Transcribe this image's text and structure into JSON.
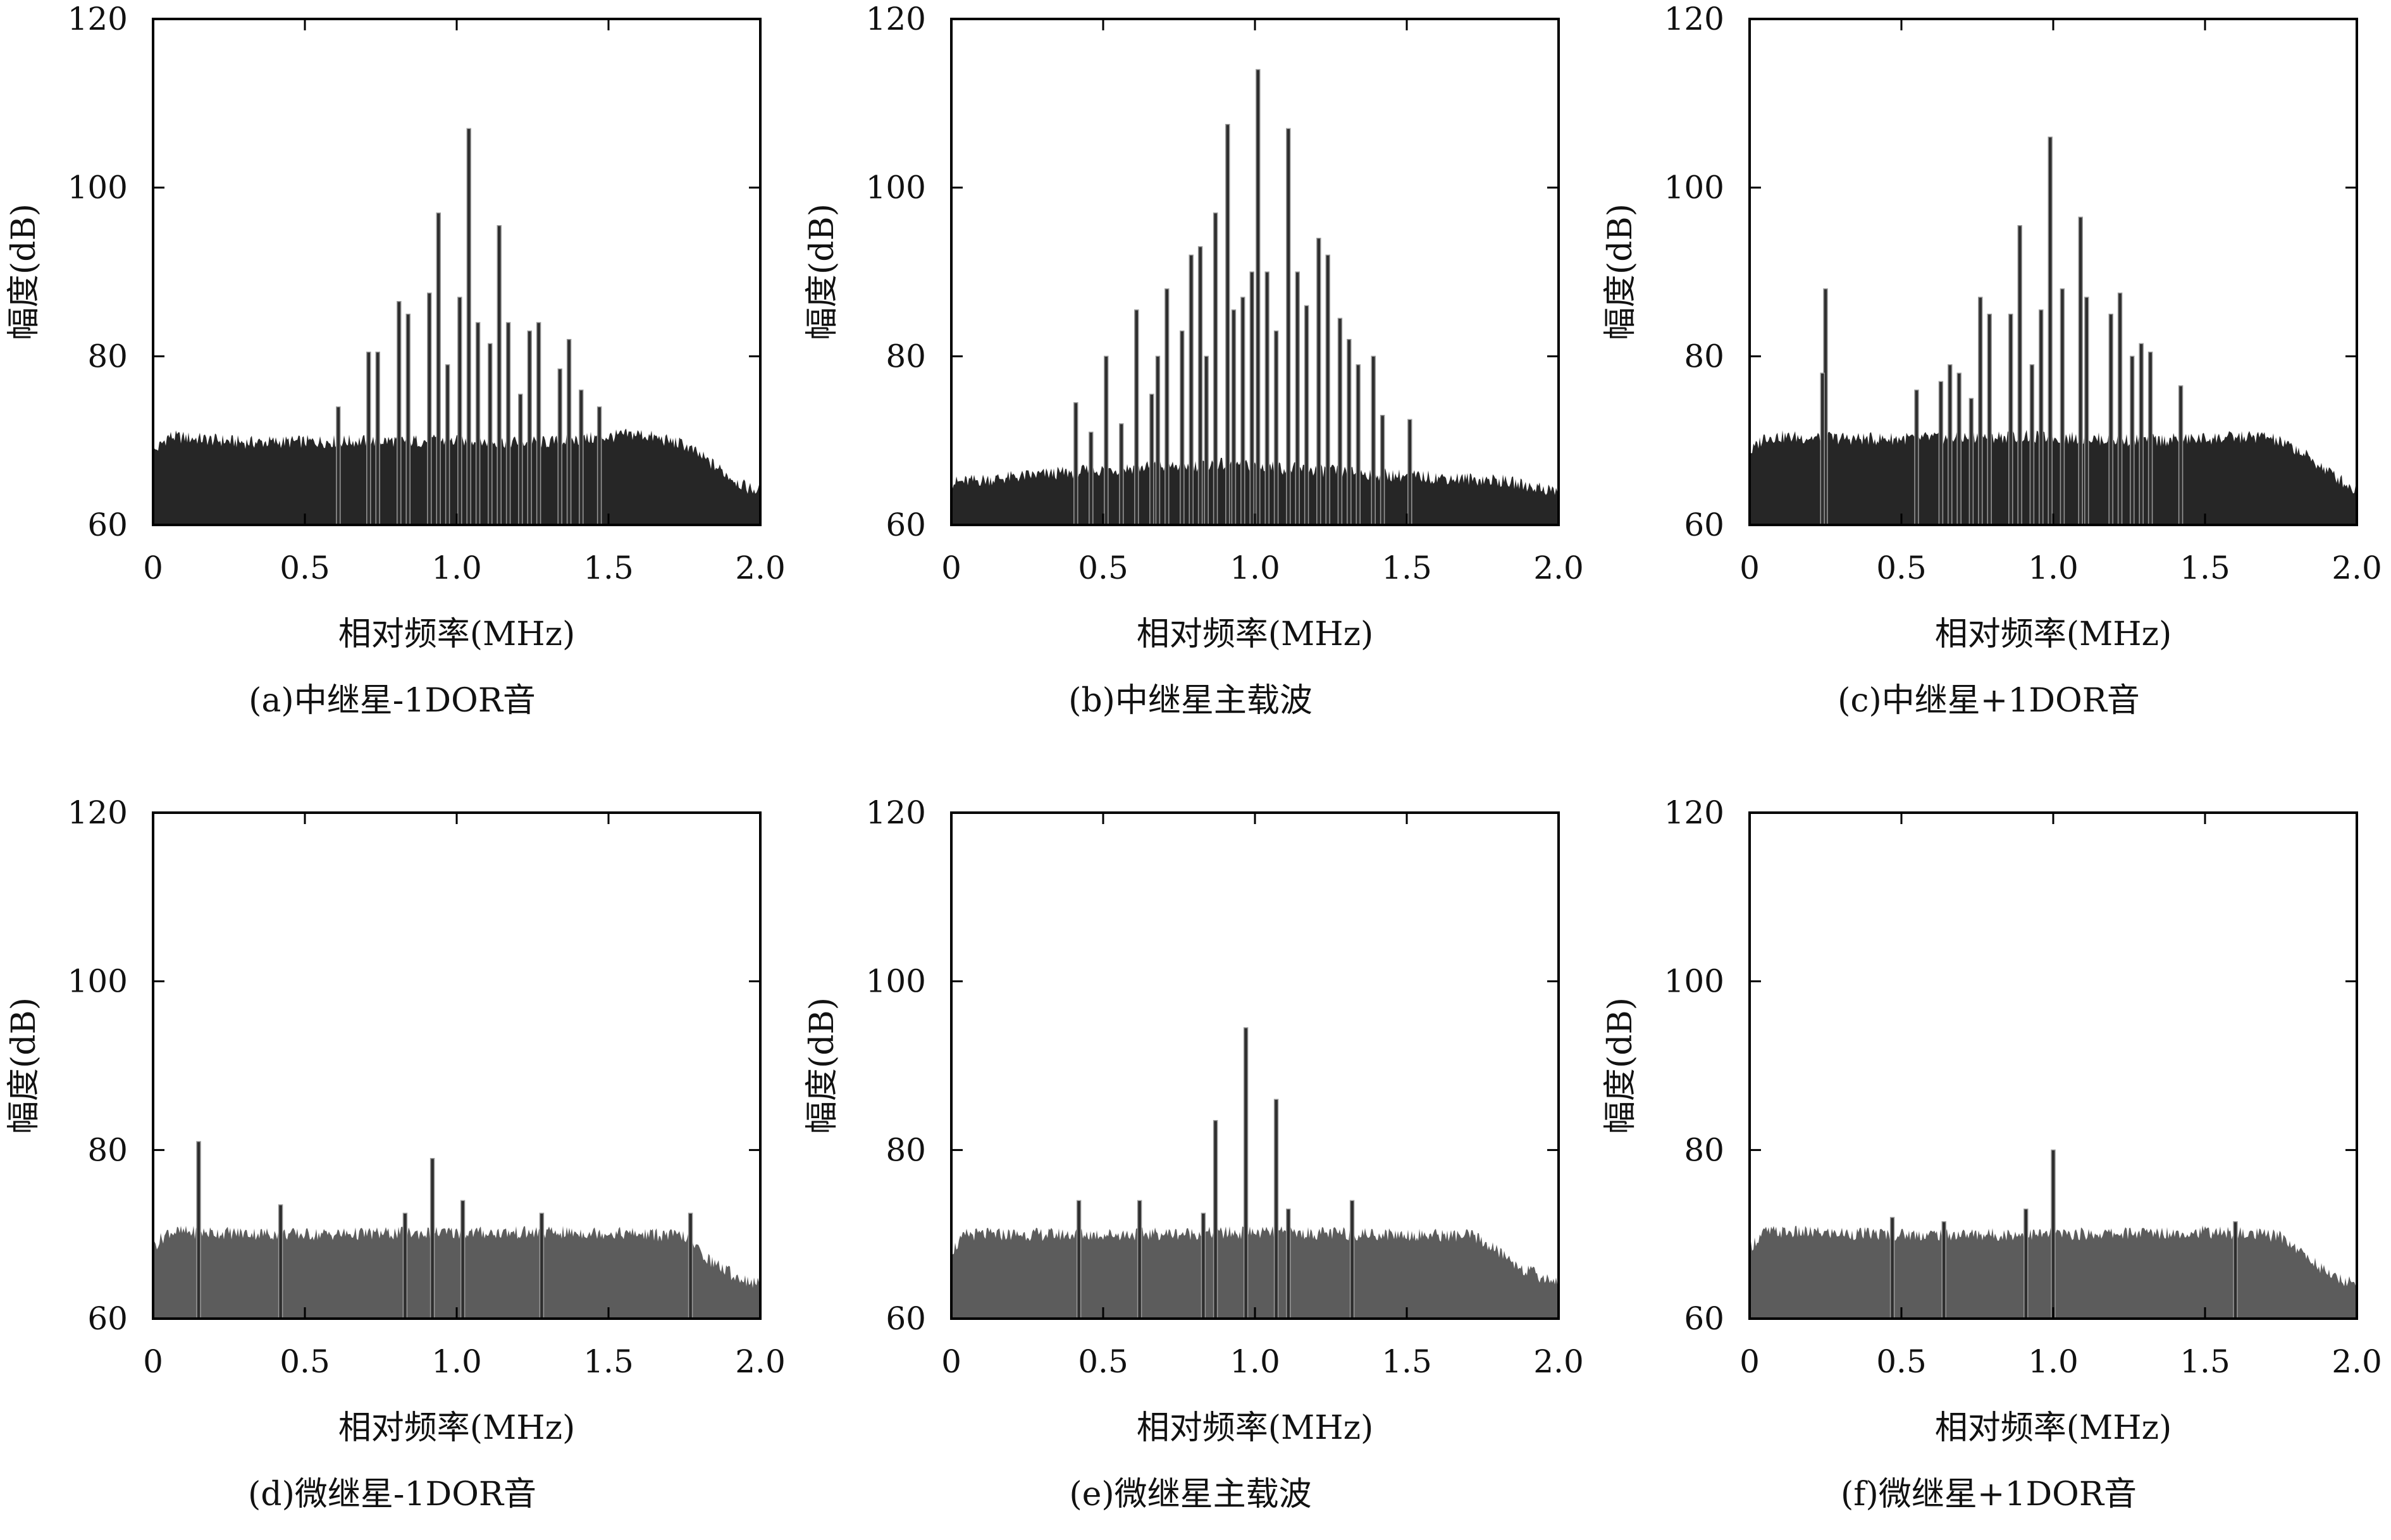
{
  "chart_data": [
    {
      "type": "bar",
      "caption": "(a)中继星-1DOR音",
      "xlabel": "相对频率(MHz)",
      "ylabel": "幅度(dB)",
      "xlim": [
        0,
        2.0
      ],
      "ylim": [
        60,
        120
      ],
      "xticks": [
        "0",
        "0.5",
        "1.0",
        "1.5",
        "2.0"
      ],
      "yticks": [
        "60",
        "80",
        "100",
        "120"
      ],
      "fill_color": "#262626",
      "noise_floor": [
        [
          0,
          68.5
        ],
        [
          0.05,
          70.5
        ],
        [
          0.3,
          69.8
        ],
        [
          0.8,
          70.0
        ],
        [
          1.3,
          69.8
        ],
        [
          1.6,
          70.8
        ],
        [
          1.75,
          69.5
        ],
        [
          1.85,
          67.0
        ],
        [
          1.95,
          64.5
        ],
        [
          2.0,
          64.0
        ]
      ],
      "peaks": [
        {
          "x": 0.61,
          "y": 74
        },
        {
          "x": 0.71,
          "y": 80.5
        },
        {
          "x": 0.74,
          "y": 80.5
        },
        {
          "x": 0.81,
          "y": 86.5
        },
        {
          "x": 0.84,
          "y": 85
        },
        {
          "x": 0.91,
          "y": 87.5
        },
        {
          "x": 0.94,
          "y": 97
        },
        {
          "x": 0.97,
          "y": 79
        },
        {
          "x": 1.01,
          "y": 87
        },
        {
          "x": 1.04,
          "y": 107
        },
        {
          "x": 1.07,
          "y": 84
        },
        {
          "x": 1.11,
          "y": 81.5
        },
        {
          "x": 1.14,
          "y": 95.5
        },
        {
          "x": 1.17,
          "y": 84
        },
        {
          "x": 1.21,
          "y": 75.5
        },
        {
          "x": 1.24,
          "y": 83
        },
        {
          "x": 1.27,
          "y": 84
        },
        {
          "x": 1.34,
          "y": 78.5
        },
        {
          "x": 1.37,
          "y": 82
        },
        {
          "x": 1.41,
          "y": 76
        },
        {
          "x": 1.47,
          "y": 74
        }
      ]
    },
    {
      "type": "bar",
      "caption": "(b)中继星主载波",
      "xlabel": "相对频率(MHz)",
      "ylabel": "幅度(dB)",
      "xlim": [
        0,
        2.0
      ],
      "ylim": [
        60,
        120
      ],
      "xticks": [
        "0",
        "0.5",
        "1.0",
        "1.5",
        "2.0"
      ],
      "yticks": [
        "60",
        "80",
        "100",
        "120"
      ],
      "fill_color": "#262626",
      "noise_floor": [
        [
          0,
          65.0
        ],
        [
          0.3,
          66.0
        ],
        [
          0.6,
          66.8
        ],
        [
          0.9,
          67.2
        ],
        [
          1.2,
          66.5
        ],
        [
          1.5,
          65.8
        ],
        [
          1.8,
          65.3
        ],
        [
          2.0,
          64.0
        ]
      ],
      "peaks": [
        {
          "x": 0.41,
          "y": 74.5
        },
        {
          "x": 0.46,
          "y": 71
        },
        {
          "x": 0.51,
          "y": 80
        },
        {
          "x": 0.56,
          "y": 72
        },
        {
          "x": 0.61,
          "y": 85.5
        },
        {
          "x": 0.66,
          "y": 75.5
        },
        {
          "x": 0.68,
          "y": 80
        },
        {
          "x": 0.71,
          "y": 88
        },
        {
          "x": 0.76,
          "y": 83
        },
        {
          "x": 0.79,
          "y": 92
        },
        {
          "x": 0.82,
          "y": 93
        },
        {
          "x": 0.84,
          "y": 80
        },
        {
          "x": 0.87,
          "y": 97
        },
        {
          "x": 0.91,
          "y": 107.5
        },
        {
          "x": 0.93,
          "y": 85.5
        },
        {
          "x": 0.96,
          "y": 87
        },
        {
          "x": 0.99,
          "y": 90
        },
        {
          "x": 1.01,
          "y": 114
        },
        {
          "x": 1.04,
          "y": 90
        },
        {
          "x": 1.07,
          "y": 83
        },
        {
          "x": 1.11,
          "y": 107
        },
        {
          "x": 1.14,
          "y": 90
        },
        {
          "x": 1.17,
          "y": 86
        },
        {
          "x": 1.21,
          "y": 94
        },
        {
          "x": 1.24,
          "y": 92
        },
        {
          "x": 1.28,
          "y": 84.5
        },
        {
          "x": 1.31,
          "y": 82
        },
        {
          "x": 1.34,
          "y": 79
        },
        {
          "x": 1.39,
          "y": 80
        },
        {
          "x": 1.42,
          "y": 73
        },
        {
          "x": 1.51,
          "y": 72.5
        }
      ]
    },
    {
      "type": "bar",
      "caption": "(c)中继星+1DOR音",
      "xlabel": "相对频率(MHz)",
      "ylabel": "幅度(dB)",
      "xlim": [
        0,
        2.0
      ],
      "ylim": [
        60,
        120
      ],
      "xticks": [
        "0",
        "0.5",
        "1.0",
        "1.5",
        "2.0"
      ],
      "yticks": [
        "60",
        "80",
        "100",
        "120"
      ],
      "fill_color": "#262626",
      "noise_floor": [
        [
          0,
          68.5
        ],
        [
          0.05,
          70.5
        ],
        [
          0.4,
          70.2
        ],
        [
          0.9,
          70.5
        ],
        [
          1.3,
          70.0
        ],
        [
          1.7,
          70.5
        ],
        [
          1.8,
          69.0
        ],
        [
          1.9,
          66.5
        ],
        [
          2.0,
          64.0
        ]
      ],
      "peaks": [
        {
          "x": 0.25,
          "y": 88
        },
        {
          "x": 0.24,
          "y": 78
        },
        {
          "x": 0.55,
          "y": 76
        },
        {
          "x": 0.63,
          "y": 77
        },
        {
          "x": 0.66,
          "y": 79
        },
        {
          "x": 0.69,
          "y": 78
        },
        {
          "x": 0.73,
          "y": 75
        },
        {
          "x": 0.76,
          "y": 87
        },
        {
          "x": 0.79,
          "y": 85
        },
        {
          "x": 0.86,
          "y": 85
        },
        {
          "x": 0.89,
          "y": 95.5
        },
        {
          "x": 0.93,
          "y": 79
        },
        {
          "x": 0.96,
          "y": 85.5
        },
        {
          "x": 0.99,
          "y": 106
        },
        {
          "x": 1.03,
          "y": 88
        },
        {
          "x": 1.09,
          "y": 96.5
        },
        {
          "x": 1.11,
          "y": 87
        },
        {
          "x": 1.19,
          "y": 85
        },
        {
          "x": 1.22,
          "y": 87.5
        },
        {
          "x": 1.26,
          "y": 80
        },
        {
          "x": 1.29,
          "y": 81.5
        },
        {
          "x": 1.32,
          "y": 80.5
        },
        {
          "x": 1.42,
          "y": 76.5
        }
      ]
    },
    {
      "type": "bar",
      "caption": "(d)微继星-1DOR音",
      "xlabel": "相对频率(MHz)",
      "ylabel": "幅度(dB)",
      "xlim": [
        0,
        2.0
      ],
      "ylim": [
        60,
        120
      ],
      "xticks": [
        "0",
        "0.5",
        "1.0",
        "1.5",
        "2.0"
      ],
      "yticks": [
        "60",
        "80",
        "100",
        "120"
      ],
      "fill_color": "#5c5c5c",
      "noise_floor": [
        [
          0,
          68.5
        ],
        [
          0.05,
          70.3
        ],
        [
          0.5,
          70.0
        ],
        [
          1.0,
          70.2
        ],
        [
          1.5,
          70.2
        ],
        [
          1.75,
          69.8
        ],
        [
          1.83,
          67.0
        ],
        [
          1.92,
          65.0
        ],
        [
          2.0,
          64.0
        ]
      ],
      "peaks": [
        {
          "x": 0.15,
          "y": 81
        },
        {
          "x": 0.42,
          "y": 73.5
        },
        {
          "x": 0.83,
          "y": 72.5
        },
        {
          "x": 0.92,
          "y": 79
        },
        {
          "x": 1.02,
          "y": 74
        },
        {
          "x": 1.28,
          "y": 72.5
        },
        {
          "x": 1.77,
          "y": 72.5
        }
      ]
    },
    {
      "type": "bar",
      "caption": "(e)微继星主载波",
      "xlabel": "相对频率(MHz)",
      "ylabel": "幅度(dB)",
      "xlim": [
        0,
        2.0
      ],
      "ylim": [
        60,
        120
      ],
      "xticks": [
        "0",
        "0.5",
        "1.0",
        "1.5",
        "2.0"
      ],
      "yticks": [
        "60",
        "80",
        "100",
        "120"
      ],
      "fill_color": "#5c5c5c",
      "noise_floor": [
        [
          0,
          68.0
        ],
        [
          0.05,
          70.0
        ],
        [
          0.5,
          70.0
        ],
        [
          1.0,
          70.2
        ],
        [
          1.5,
          70.0
        ],
        [
          1.72,
          69.8
        ],
        [
          1.8,
          68.0
        ],
        [
          1.88,
          66.0
        ],
        [
          1.95,
          64.8
        ],
        [
          2.0,
          64.5
        ]
      ],
      "peaks": [
        {
          "x": 0.42,
          "y": 74
        },
        {
          "x": 0.62,
          "y": 74
        },
        {
          "x": 0.83,
          "y": 72.5
        },
        {
          "x": 0.87,
          "y": 83.5
        },
        {
          "x": 0.97,
          "y": 94.5
        },
        {
          "x": 1.07,
          "y": 86
        },
        {
          "x": 1.11,
          "y": 73
        },
        {
          "x": 1.32,
          "y": 74
        }
      ]
    },
    {
      "type": "bar",
      "caption": "(f)微继星+1DOR音",
      "xlabel": "相对频率(MHz)",
      "ylabel": "幅度(dB)",
      "xlim": [
        0,
        2.0
      ],
      "ylim": [
        60,
        120
      ],
      "xticks": [
        "0",
        "0.5",
        "1.0",
        "1.5",
        "2.0"
      ],
      "yticks": [
        "60",
        "80",
        "100",
        "120"
      ],
      "fill_color": "#5c5c5c",
      "noise_floor": [
        [
          0,
          68.5
        ],
        [
          0.05,
          70.3
        ],
        [
          0.5,
          70.0
        ],
        [
          1.0,
          70.0
        ],
        [
          1.5,
          70.3
        ],
        [
          1.75,
          69.8
        ],
        [
          1.83,
          67.5
        ],
        [
          1.92,
          65.0
        ],
        [
          2.0,
          64.0
        ]
      ],
      "peaks": [
        {
          "x": 0.47,
          "y": 72
        },
        {
          "x": 0.64,
          "y": 71.5
        },
        {
          "x": 0.91,
          "y": 73
        },
        {
          "x": 1.0,
          "y": 80
        },
        {
          "x": 1.6,
          "y": 71.5
        }
      ]
    }
  ]
}
